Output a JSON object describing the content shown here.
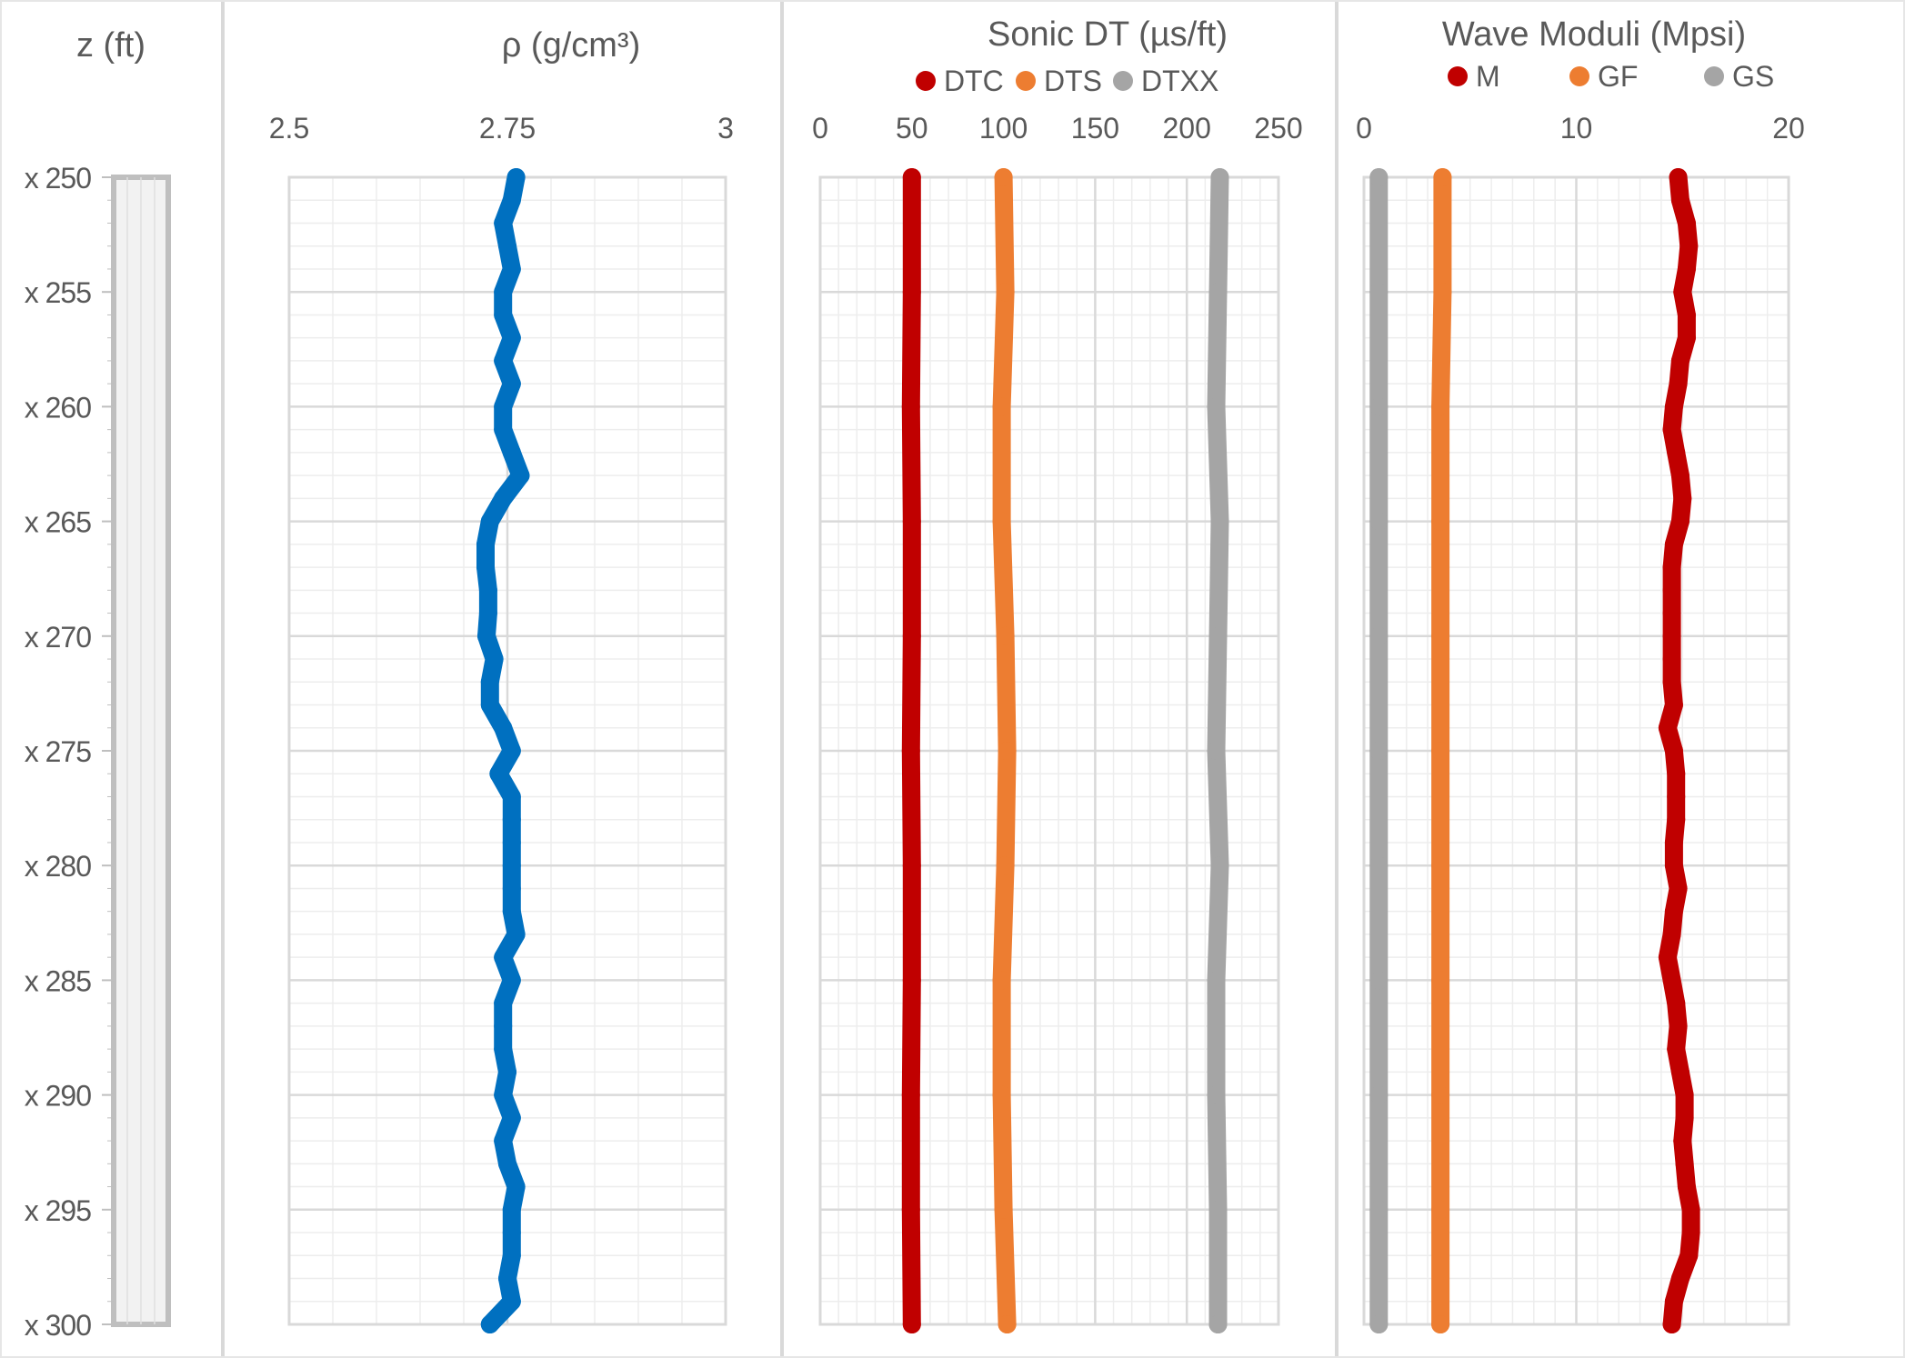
{
  "chart_data": [
    {
      "type": "line",
      "title": "z (ft)",
      "depth_tick_labels": [
        "x 250",
        "x 255",
        "x 260",
        "x 265",
        "x 270",
        "x 275",
        "x 280",
        "x 285",
        "x 290",
        "x 295",
        "x 300"
      ],
      "ylim": [
        250,
        300
      ]
    },
    {
      "type": "line",
      "title": "ρ (g/cm³)",
      "xlim": [
        2.5,
        3
      ],
      "x_tick_labels": [
        "2.5",
        "2.75",
        "3"
      ],
      "x_ticks": [
        2.5,
        2.75,
        3
      ],
      "ylim": [
        250,
        300
      ],
      "grid": true,
      "series": [
        {
          "color": "#0070C0",
          "depth": [
            250,
            251,
            252,
            253,
            254,
            255,
            256,
            257,
            258,
            259,
            260,
            261,
            262,
            263,
            264,
            265,
            266,
            267,
            268,
            269,
            270,
            271,
            272,
            273,
            274,
            275,
            276,
            277,
            278,
            279,
            280,
            281,
            282,
            283,
            284,
            285,
            286,
            287,
            288,
            289,
            290,
            291,
            292,
            293,
            294,
            295,
            296,
            297,
            298,
            299,
            300
          ],
          "values": [
            2.76,
            2.755,
            2.745,
            2.75,
            2.755,
            2.745,
            2.745,
            2.755,
            2.745,
            2.755,
            2.745,
            2.745,
            2.755,
            2.765,
            2.745,
            2.73,
            2.725,
            2.725,
            2.728,
            2.728,
            2.726,
            2.735,
            2.73,
            2.73,
            2.745,
            2.755,
            2.74,
            2.755,
            2.755,
            2.755,
            2.755,
            2.755,
            2.755,
            2.76,
            2.745,
            2.755,
            2.745,
            2.745,
            2.745,
            2.75,
            2.745,
            2.755,
            2.745,
            2.75,
            2.76,
            2.755,
            2.755,
            2.755,
            2.75,
            2.755,
            2.73
          ]
        }
      ]
    },
    {
      "type": "line",
      "title": "Sonic DT (µs/ft)",
      "xlim": [
        0,
        250
      ],
      "x_tick_labels": [
        "0",
        "50",
        "100",
        "150",
        "200",
        "250"
      ],
      "x_ticks": [
        0,
        50,
        100,
        150,
        200,
        250
      ],
      "ylim": [
        250,
        300
      ],
      "grid": true,
      "legend": "top",
      "series": [
        {
          "name": "DTC",
          "color": "#C00000",
          "depth": [
            250,
            255,
            260,
            265,
            270,
            275,
            280,
            285,
            290,
            295,
            300
          ],
          "values": [
            50,
            50,
            49.5,
            50,
            50,
            49.5,
            50,
            50,
            49.5,
            49.5,
            50
          ]
        },
        {
          "name": "DTS",
          "color": "#ED7D31",
          "depth": [
            250,
            255,
            260,
            265,
            270,
            275,
            280,
            285,
            290,
            295,
            300
          ],
          "values": [
            100,
            101,
            99,
            99,
            101,
            102,
            101,
            99,
            99,
            100,
            102
          ]
        },
        {
          "name": "DTXX",
          "color": "#A5A5A5",
          "depth": [
            250,
            255,
            260,
            265,
            270,
            275,
            280,
            285,
            290,
            295,
            300
          ],
          "values": [
            218,
            217,
            216,
            218,
            217,
            216,
            218,
            216,
            216,
            217,
            217
          ]
        }
      ]
    },
    {
      "type": "line",
      "title": "Wave Moduli (Mpsi)",
      "xlim": [
        0,
        20
      ],
      "x_tick_labels": [
        "0",
        "10",
        "20"
      ],
      "x_ticks": [
        0,
        10,
        20
      ],
      "ylim": [
        250,
        300
      ],
      "grid": true,
      "legend": "top",
      "series": [
        {
          "name": "M",
          "color": "#C00000",
          "depth": [
            250,
            251,
            252,
            253,
            254,
            255,
            256,
            257,
            258,
            259,
            260,
            261,
            262,
            263,
            264,
            265,
            266,
            267,
            268,
            269,
            270,
            271,
            272,
            273,
            274,
            275,
            276,
            277,
            278,
            279,
            280,
            281,
            282,
            283,
            284,
            285,
            286,
            287,
            288,
            289,
            290,
            291,
            292,
            293,
            294,
            295,
            296,
            297,
            298,
            299,
            300
          ],
          "values": [
            14.8,
            14.9,
            15.2,
            15.3,
            15.2,
            15,
            15.2,
            15.2,
            14.9,
            14.8,
            14.6,
            14.5,
            14.7,
            14.9,
            15,
            14.9,
            14.6,
            14.5,
            14.5,
            14.5,
            14.5,
            14.5,
            14.5,
            14.6,
            14.3,
            14.6,
            14.7,
            14.7,
            14.7,
            14.6,
            14.6,
            14.8,
            14.6,
            14.5,
            14.3,
            14.5,
            14.7,
            14.8,
            14.7,
            14.9,
            15.1,
            15.1,
            15.0,
            15.1,
            15.2,
            15.4,
            15.4,
            15.3,
            14.9,
            14.6,
            14.5
          ]
        },
        {
          "name": "GF",
          "color": "#ED7D31",
          "depth": [
            250,
            255,
            260,
            265,
            270,
            275,
            280,
            285,
            290,
            295,
            300
          ],
          "values": [
            3.7,
            3.7,
            3.6,
            3.6,
            3.6,
            3.6,
            3.6,
            3.6,
            3.6,
            3.6,
            3.6
          ]
        },
        {
          "name": "GS",
          "color": "#A5A5A5",
          "depth": [
            250,
            255,
            260,
            265,
            270,
            275,
            280,
            285,
            290,
            295,
            300
          ],
          "values": [
            0.7,
            0.7,
            0.7,
            0.7,
            0.7,
            0.7,
            0.7,
            0.7,
            0.7,
            0.7,
            0.7
          ]
        }
      ]
    }
  ],
  "colors": {
    "frame": "#D9D9D9",
    "grid_major": "#D9D9D9",
    "grid_minor": "#EDEDED",
    "text": "#595959"
  }
}
